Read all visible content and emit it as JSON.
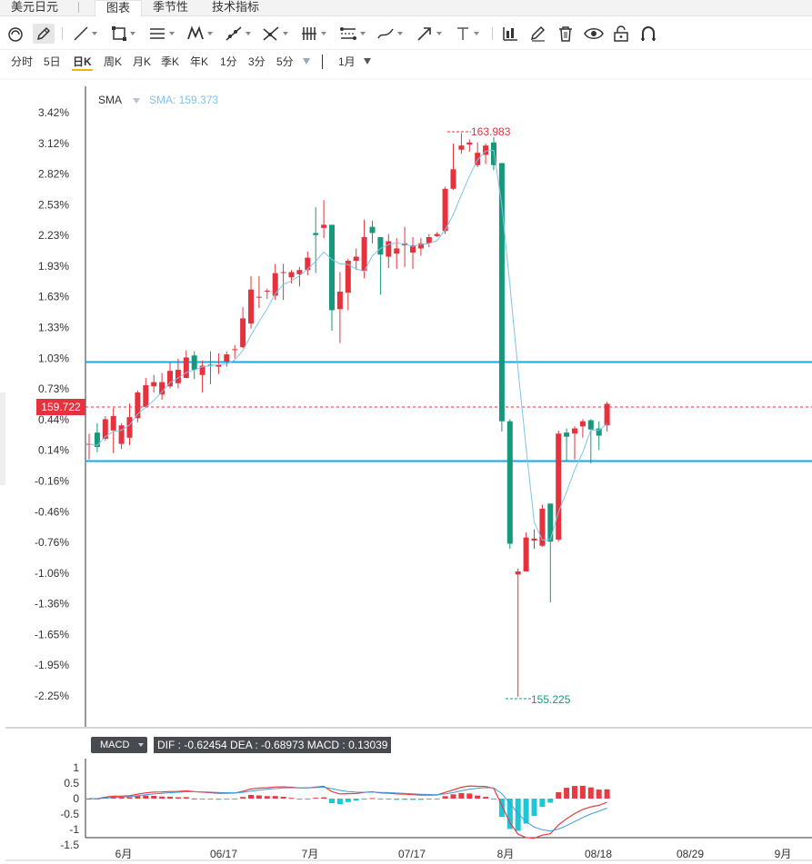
{
  "tabs": [
    {
      "label": "美元日元",
      "active": false
    },
    {
      "label": "图表",
      "active": true
    },
    {
      "label": "季节性",
      "active": false
    },
    {
      "label": "技术指标",
      "active": false
    }
  ],
  "toolbar": {
    "tools": [
      "magnet-icon",
      "pencil-icon",
      "line-icon",
      "rectangle-icon",
      "parallel-lines-icon",
      "pattern-icon",
      "ray-icon",
      "fork-icon",
      "fib-lines-icon",
      "channel-icon",
      "brush-icon",
      "arrow-icon",
      "text-icon",
      "measure-icon",
      "edit-icon",
      "trash-icon",
      "eye-icon",
      "lock-icon",
      "magnet-u-icon"
    ]
  },
  "periods": [
    "分时",
    "5日",
    "日K",
    "周K",
    "月K",
    "季K",
    "年K",
    "1分",
    "3分",
    "5分"
  ],
  "active_period": "日K",
  "range_label": "1月",
  "indicator": {
    "name": "SMA",
    "value_label": "SMA: 159.373"
  },
  "price_tag": "159.722",
  "high_label": "163.983",
  "low_label": "155.225",
  "macd": {
    "button_label": "MACD",
    "info": "DIF : -0.62454   DEA : -0.68973   MACD : 0.13039"
  },
  "colors": {
    "up": "#e5323d",
    "down": "#16997a",
    "sma": "#7fc4ee",
    "hline": "#19a6e8"
  },
  "chart_data": {
    "type": "candlestick",
    "y_axis_labels": [
      "3.42%",
      "3.12%",
      "2.82%",
      "2.53%",
      "2.23%",
      "1.93%",
      "1.63%",
      "1.33%",
      "1.03%",
      "0.73%",
      "0.44%",
      "0.14%",
      "-0.16%",
      "-0.46%",
      "-0.76%",
      "-1.06%",
      "-1.36%",
      "-1.65%",
      "-1.95%",
      "-2.25%"
    ],
    "x_axis_labels": [
      "6月",
      "06/17",
      "7月",
      "07/17",
      "8月",
      "08/18",
      "08/29",
      "9月"
    ],
    "macd_axis_labels": [
      "1",
      "0.5",
      "0",
      "-0.5",
      "-1",
      "-1.5"
    ],
    "candles": [
      [
        0.2,
        0.2,
        0.3,
        0.05
      ],
      [
        0.31,
        0.17,
        0.4,
        0.12
      ],
      [
        0.25,
        0.44,
        0.47,
        0.23
      ],
      [
        0.33,
        0.47,
        0.55,
        0.11
      ],
      [
        0.2,
        0.38,
        0.4,
        0.15
      ],
      [
        0.26,
        0.46,
        0.59,
        0.19
      ],
      [
        0.45,
        0.7,
        0.72,
        0.41
      ],
      [
        0.56,
        0.77,
        0.84,
        0.55
      ],
      [
        0.76,
        0.8,
        0.87,
        0.7
      ],
      [
        0.68,
        0.8,
        0.89,
        0.63
      ],
      [
        0.76,
        0.91,
        0.99,
        0.74
      ],
      [
        0.79,
        0.92,
        1.03,
        0.74
      ],
      [
        0.84,
        1.04,
        1.11,
        0.85
      ],
      [
        1.06,
        0.92,
        1.1,
        0.83
      ],
      [
        0.87,
        0.96,
        1.01,
        0.7
      ],
      [
        0.97,
        0.96,
        1.1,
        0.78
      ],
      [
        0.95,
        0.97,
        1.08,
        0.88
      ],
      [
        1.0,
        1.07,
        1.1,
        0.95
      ],
      [
        1.12,
        1.12,
        1.16,
        1.03
      ],
      [
        1.14,
        1.42,
        1.53,
        1.13
      ],
      [
        1.37,
        1.7,
        1.83,
        1.32
      ],
      [
        1.63,
        1.63,
        1.83,
        1.52
      ],
      [
        1.68,
        1.69,
        1.71,
        1.61
      ],
      [
        1.64,
        1.86,
        1.95,
        1.6
      ],
      [
        1.87,
        1.87,
        1.95,
        1.6
      ],
      [
        1.82,
        1.87,
        1.89,
        1.76
      ],
      [
        1.85,
        1.89,
        1.92,
        1.73
      ],
      [
        1.89,
        2.01,
        2.07,
        1.84
      ],
      [
        2.25,
        2.23,
        2.5,
        1.86
      ],
      [
        2.3,
        2.33,
        2.57,
        2.2
      ],
      [
        2.33,
        1.5,
        2.33,
        1.3
      ],
      [
        1.51,
        1.68,
        1.87,
        1.18
      ],
      [
        1.67,
        1.98,
        2.0,
        1.5
      ],
      [
        1.98,
        2.02,
        2.1,
        1.89
      ],
      [
        1.88,
        2.21,
        2.38,
        1.81
      ],
      [
        2.31,
        2.25,
        2.37,
        2.15
      ],
      [
        2.21,
        2.04,
        2.16,
        1.65
      ],
      [
        2.02,
        2.17,
        2.24,
        1.91
      ],
      [
        2.05,
        2.1,
        2.2,
        1.9
      ],
      [
        2.13,
        2.15,
        2.31,
        1.92
      ],
      [
        2.06,
        2.13,
        2.21,
        1.9
      ],
      [
        2.1,
        2.15,
        2.2,
        2.03
      ],
      [
        2.15,
        2.21,
        2.24,
        2.11
      ],
      [
        2.22,
        2.24,
        2.26,
        2.21
      ],
      [
        2.27,
        2.68,
        2.7,
        2.24
      ],
      [
        2.68,
        2.87,
        3.12,
        2.67
      ],
      [
        3.06,
        3.1,
        3.22,
        3.02
      ],
      [
        3.11,
        3.13,
        3.16,
        3.04
      ],
      [
        2.91,
        3.03,
        3.13,
        2.89
      ],
      [
        3.01,
        3.1,
        3.12,
        2.92
      ],
      [
        3.13,
        2.91,
        3.18,
        2.86
      ],
      [
        2.93,
        0.42,
        2.93,
        0.32
      ],
      [
        0.42,
        -0.77,
        0.44,
        -0.82
      ],
      [
        -1.07,
        -1.04,
        -1.01,
        -2.26
      ],
      [
        -1.04,
        -0.71,
        -0.66,
        -1.02
      ],
      [
        -0.74,
        -0.72,
        -0.63,
        -0.82
      ],
      [
        -0.79,
        -0.43,
        -0.39,
        -0.8
      ],
      [
        -0.38,
        -0.75,
        -0.45,
        -1.34
      ],
      [
        -0.73,
        0.3,
        0.33,
        -0.75
      ],
      [
        0.31,
        0.27,
        0.35,
        0.03
      ],
      [
        0.3,
        0.35,
        0.37,
        0.05
      ],
      [
        0.37,
        0.42,
        0.44,
        0.26
      ],
      [
        0.43,
        0.34,
        0.44,
        0.01
      ],
      [
        0.35,
        0.28,
        0.42,
        0.14
      ],
      [
        0.38,
        0.59,
        0.61,
        0.32
      ]
    ]
  }
}
